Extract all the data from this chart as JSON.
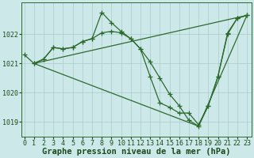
{
  "title": "Graphe pression niveau de la mer (hPa)",
  "xlabel_hours": [
    0,
    1,
    2,
    3,
    4,
    5,
    6,
    7,
    8,
    9,
    10,
    11,
    12,
    13,
    14,
    15,
    16,
    17,
    18,
    19,
    20,
    21,
    22,
    23
  ],
  "series": [
    {
      "x": [
        0,
        1,
        2,
        3,
        4,
        5,
        6,
        7,
        8,
        9,
        10,
        11,
        12,
        13,
        14,
        15,
        16,
        17,
        18,
        19,
        20,
        21,
        22,
        23
      ],
      "y": [
        1021.3,
        1021.0,
        1021.15,
        1021.55,
        1021.5,
        1021.55,
        1021.75,
        1021.85,
        1022.75,
        1022.4,
        1022.1,
        1021.85,
        1021.5,
        1020.55,
        1019.65,
        1019.5,
        1019.3,
        1019.3,
        1018.9,
        1019.55,
        1020.55,
        1022.05,
        1022.55,
        1022.65
      ]
    },
    {
      "x": [
        1,
        2,
        3,
        4,
        5,
        6,
        7,
        8,
        9,
        10,
        11,
        12,
        13,
        14,
        15,
        16,
        17,
        18,
        19,
        20,
        21,
        22,
        23
      ],
      "y": [
        1021.0,
        1021.15,
        1021.55,
        1021.5,
        1021.55,
        1021.75,
        1021.85,
        1022.05,
        1022.1,
        1022.05,
        1021.85,
        1021.5,
        1021.05,
        1020.5,
        1019.95,
        1019.55,
        1019.05,
        1018.85,
        1019.55,
        1020.55,
        1022.0,
        1022.55,
        1022.65
      ]
    },
    {
      "x": [
        1,
        23
      ],
      "y": [
        1021.0,
        1022.65
      ]
    },
    {
      "x": [
        1,
        18,
        23
      ],
      "y": [
        1021.0,
        1018.85,
        1022.65
      ]
    }
  ],
  "line_color": "#2d6a2d",
  "marker": "+",
  "markersize": 4,
  "linewidth": 0.9,
  "ylim": [
    1018.5,
    1023.1
  ],
  "yticks": [
    1019,
    1020,
    1021,
    1022
  ],
  "bg_color": "#cce8e8",
  "grid_color": "#aacaca",
  "title_color": "#1a4a1a",
  "title_fontsize": 7.5,
  "tick_fontsize": 6.0,
  "tick_color": "#1a4a1a"
}
